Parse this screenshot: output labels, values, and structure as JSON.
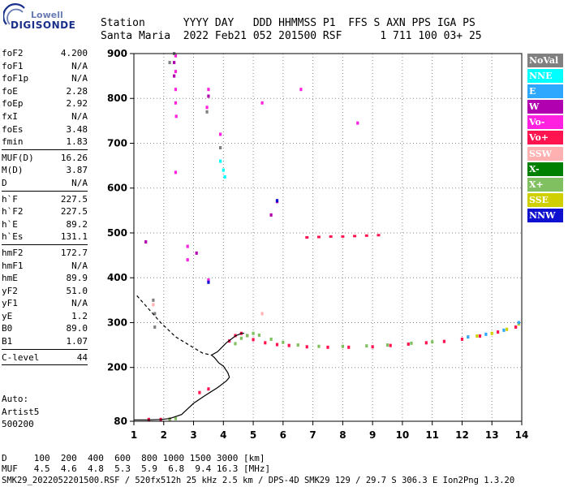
{
  "logo": {
    "top": "Lowell",
    "bottom": "DIGISONDE"
  },
  "header": {
    "row1": "Station      YYYY DAY   DDD HHMMSS P1  FFS S AXN PPS IGA PS",
    "row2": "Santa Maria  2022 Feb21 052 201500 RSF      1 711 100 03+ 25"
  },
  "params": [
    {
      "label": "foF2",
      "value": "4.200"
    },
    {
      "label": "foF1",
      "value": "N/A"
    },
    {
      "label": "foF1p",
      "value": "N/A"
    },
    {
      "label": "foE",
      "value": "2.28"
    },
    {
      "label": "foEp",
      "value": "2.92"
    },
    {
      "label": "fxI",
      "value": "N/A"
    },
    {
      "label": "foEs",
      "value": "3.48"
    },
    {
      "label": "fmin",
      "value": "1.83"
    },
    {
      "label": "MUF(D)",
      "value": "16.26",
      "sep": true
    },
    {
      "label": "M(D)",
      "value": "3.87"
    },
    {
      "label": "D",
      "value": "N/A"
    },
    {
      "label": "h`F",
      "value": "227.5",
      "sep": true
    },
    {
      "label": "h`F2",
      "value": "227.5"
    },
    {
      "label": "h`E",
      "value": "89.2"
    },
    {
      "label": "h`Es",
      "value": "131.1"
    },
    {
      "label": "hmF2",
      "value": "172.7",
      "sep": true
    },
    {
      "label": "hmF1",
      "value": "N/A"
    },
    {
      "label": "hmE",
      "value": "89.9"
    },
    {
      "label": "yF2",
      "value": "51.0"
    },
    {
      "label": "yF1",
      "value": "N/A"
    },
    {
      "label": "yE",
      "value": "1.2"
    },
    {
      "label": "B0",
      "value": "89.0"
    },
    {
      "label": "B1",
      "value": "1.07"
    },
    {
      "label": "C-level",
      "value": "44",
      "sep": true
    }
  ],
  "autoscaling": {
    "line1": "Auto:",
    "line2": "Artist5",
    "line3": "500200"
  },
  "legend": [
    {
      "label": "NoVal",
      "color": "#808080"
    },
    {
      "label": "NNE",
      "color": "#00ffff"
    },
    {
      "label": "E",
      "color": "#2ea8ff"
    },
    {
      "label": "W",
      "color": "#b000b0"
    },
    {
      "label": "Vo-",
      "color": "#ff20e0"
    },
    {
      "label": "Vo+",
      "color": "#ff1450"
    },
    {
      "label": "SSW",
      "color": "#ffb0b0"
    },
    {
      "label": "X-",
      "color": "#008000"
    },
    {
      "label": "X+",
      "color": "#80c060"
    },
    {
      "label": "SSE",
      "color": "#d0d000"
    },
    {
      "label": "NNW",
      "color": "#1010d0"
    }
  ],
  "bottom_table": {
    "row1": "D     100  200  400  600  800 1000 1500 3000 [km]",
    "row2": "MUF   4.5  4.6  4.8  5.3  5.9  6.8  9.4 16.3 [MHz]"
  },
  "footer": "SMK29_2022052201500.RSF / 520fx512h 25 kHz 2.5 km / DPS-4D SMK29 129 / 29.7 S 306.3 E Ion2Png 1.3.20",
  "chart_data": {
    "type": "scatter",
    "xlim": [
      1,
      14
    ],
    "ylim": [
      80,
      900
    ],
    "x_ticks": [
      1,
      2,
      3,
      4,
      5,
      6,
      7,
      8,
      9,
      10,
      11,
      12,
      13,
      14
    ],
    "y_ticks": [
      80,
      200,
      300,
      400,
      500,
      600,
      700,
      800,
      900
    ],
    "grid": "dotted",
    "series": [
      {
        "name": "Vo+",
        "color": "#ff1450",
        "points": [
          [
            1.5,
            84
          ],
          [
            1.9,
            84
          ],
          [
            2.2,
            85
          ],
          [
            3.2,
            144
          ],
          [
            3.5,
            152
          ],
          [
            4.2,
            259
          ],
          [
            4.4,
            271
          ],
          [
            4.6,
            276
          ],
          [
            4.8,
            271
          ],
          [
            5.0,
            262
          ],
          [
            5.4,
            255
          ],
          [
            5.8,
            251
          ],
          [
            6.2,
            249
          ],
          [
            6.8,
            246
          ],
          [
            7.5,
            245
          ],
          [
            8.2,
            245
          ],
          [
            9.0,
            246
          ],
          [
            9.6,
            249
          ],
          [
            10.2,
            252
          ],
          [
            10.8,
            255
          ],
          [
            11.4,
            258
          ],
          [
            12.0,
            263
          ],
          [
            12.6,
            270
          ],
          [
            13.2,
            279
          ],
          [
            13.8,
            290
          ]
        ]
      },
      {
        "name": "X+",
        "color": "#80c060",
        "points": [
          [
            2.2,
            85
          ],
          [
            2.4,
            86
          ],
          [
            4.4,
            253
          ],
          [
            4.6,
            265
          ],
          [
            4.8,
            271
          ],
          [
            5.0,
            276
          ],
          [
            5.2,
            272
          ],
          [
            5.6,
            263
          ],
          [
            6.0,
            256
          ],
          [
            6.5,
            250
          ],
          [
            7.2,
            247
          ],
          [
            8.0,
            247
          ],
          [
            8.8,
            248
          ],
          [
            9.5,
            250
          ],
          [
            10.3,
            254
          ],
          [
            11.0,
            257
          ]
        ]
      },
      {
        "name": "SSE",
        "color": "#d0d000",
        "points": [
          [
            12.5,
            270
          ],
          [
            13.0,
            276
          ],
          [
            13.5,
            285
          ],
          [
            13.9,
            297
          ]
        ]
      },
      {
        "name": "E",
        "color": "#2ea8ff",
        "points": [
          [
            12.2,
            268
          ],
          [
            12.8,
            274
          ],
          [
            13.4,
            283
          ],
          [
            13.9,
            300
          ]
        ]
      },
      {
        "name": "Vo-",
        "color": "#ff20e0",
        "points": [
          [
            2.4,
            895
          ],
          [
            2.4,
            860
          ],
          [
            2.4,
            820
          ],
          [
            2.4,
            790
          ],
          [
            2.42,
            760
          ],
          [
            2.4,
            635
          ],
          [
            3.5,
            820
          ],
          [
            3.45,
            780
          ],
          [
            3.9,
            720
          ],
          [
            6.6,
            820
          ],
          [
            8.5,
            745
          ],
          [
            5.3,
            790
          ],
          [
            3.5,
            395
          ],
          [
            2.8,
            470
          ],
          [
            2.8,
            440
          ]
        ]
      },
      {
        "name": "W",
        "color": "#b000b0",
        "points": [
          [
            2.35,
            880
          ],
          [
            2.35,
            850
          ],
          [
            3.5,
            805
          ],
          [
            5.8,
            570
          ],
          [
            5.6,
            540
          ],
          [
            1.4,
            480
          ],
          [
            3.1,
            455
          ]
        ]
      },
      {
        "name": "NNE",
        "color": "#00ffff",
        "points": [
          [
            4.0,
            640
          ],
          [
            4.05,
            625
          ],
          [
            3.9,
            660
          ]
        ]
      },
      {
        "name": "NNW",
        "color": "#1010d0",
        "points": [
          [
            5.8,
            572
          ],
          [
            3.5,
            390
          ]
        ]
      },
      {
        "name": "NoVal",
        "color": "#808080",
        "points": [
          [
            1.65,
            350
          ],
          [
            1.7,
            320
          ],
          [
            1.7,
            290
          ],
          [
            2.2,
            880
          ],
          [
            2.35,
            900
          ],
          [
            3.45,
            770
          ],
          [
            3.9,
            690
          ]
        ]
      },
      {
        "name": "SSW",
        "color": "#ffb0b0",
        "points": [
          [
            1.65,
            340
          ],
          [
            5.3,
            320
          ]
        ]
      }
    ],
    "layer_band": {
      "name": "Vo+",
      "color": "#ff1450",
      "points": [
        [
          6.8,
          490
        ],
        [
          7.2,
          491
        ],
        [
          7.6,
          492
        ],
        [
          8.0,
          492
        ],
        [
          8.4,
          493
        ],
        [
          8.8,
          494
        ],
        [
          9.2,
          495
        ]
      ]
    },
    "profile": {
      "color": "#000000",
      "solid": [
        [
          1.0,
          83
        ],
        [
          1.5,
          83
        ],
        [
          1.9,
          84
        ],
        [
          2.2,
          86
        ],
        [
          2.6,
          95
        ],
        [
          3.0,
          120
        ],
        [
          3.4,
          138
        ],
        [
          3.8,
          155
        ],
        [
          4.1,
          170
        ],
        [
          4.2,
          178
        ],
        [
          4.15,
          188
        ],
        [
          4.0,
          203
        ],
        [
          3.85,
          210
        ],
        [
          3.7,
          222
        ],
        [
          3.6,
          227.5
        ],
        [
          3.8,
          235
        ],
        [
          4.1,
          255
        ],
        [
          4.4,
          270
        ],
        [
          4.6,
          276
        ],
        [
          4.7,
          276
        ]
      ],
      "dashed": [
        [
          1.1,
          360
        ],
        [
          1.5,
          330
        ],
        [
          1.9,
          300
        ],
        [
          2.4,
          268
        ],
        [
          2.9,
          248
        ],
        [
          3.3,
          232
        ],
        [
          3.6,
          227.5
        ]
      ]
    }
  }
}
